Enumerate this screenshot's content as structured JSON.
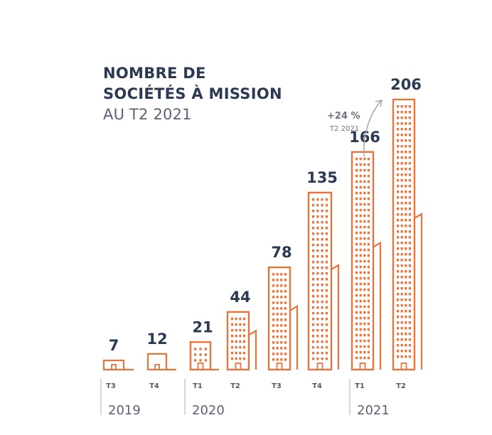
{
  "chart_data": {
    "type": "bar",
    "title_lines": [
      "NOMBRE DE",
      "SOCIÉTÉS À MISSION"
    ],
    "subtitle": "AU T2 2021",
    "categories": [
      "T3",
      "T4",
      "T1",
      "T2",
      "T3",
      "T4",
      "T1",
      "T2"
    ],
    "years": [
      "2019",
      "2020",
      "2021"
    ],
    "values": [
      7,
      12,
      21,
      44,
      78,
      135,
      166,
      206
    ],
    "value_labels": [
      "7",
      "12",
      "21",
      "44",
      "78",
      "135",
      "166",
      "206"
    ],
    "annotation": {
      "text": "+24 %",
      "subtext": "T2 2021"
    },
    "ylim": [
      0,
      206
    ],
    "grid": false,
    "legend": "none",
    "colors": {
      "bar": "#e8743b",
      "text": "#2b3a52",
      "muted": "#6b7280",
      "axis": "#b8bcc6"
    }
  }
}
